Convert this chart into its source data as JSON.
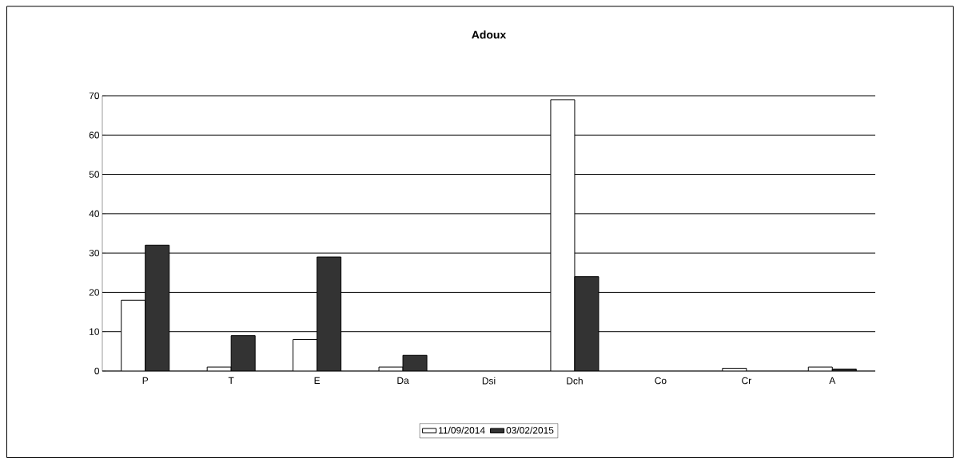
{
  "chart_data": {
    "type": "bar",
    "title": "Adoux",
    "categories": [
      "P",
      "T",
      "E",
      "Da",
      "Dsi",
      "Dch",
      "Co",
      "Cr",
      "A"
    ],
    "series": [
      {
        "name": "11/09/2014",
        "color": "#ffffff",
        "values": [
          18,
          1,
          8,
          1,
          0,
          69,
          0,
          0.7,
          1
        ]
      },
      {
        "name": "03/02/2015",
        "color": "#333333",
        "values": [
          32,
          9,
          29,
          4,
          0,
          24,
          0,
          0,
          0.5
        ]
      }
    ],
    "ylim": [
      0,
      70
    ],
    "yticks": [
      0,
      10,
      20,
      30,
      40,
      50,
      60,
      70
    ],
    "grid": "y",
    "legend": "bottom"
  }
}
